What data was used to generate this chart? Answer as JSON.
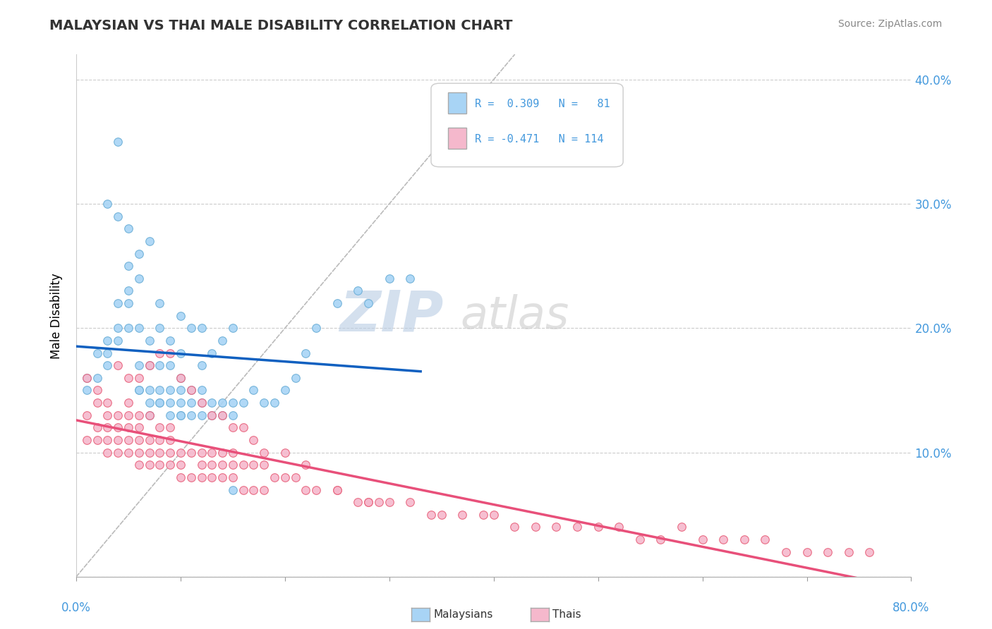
{
  "title": "MALAYSIAN VS THAI MALE DISABILITY CORRELATION CHART",
  "source": "Source: ZipAtlas.com",
  "ylabel": "Male Disability",
  "xmin": 0.0,
  "xmax": 0.8,
  "ymin": 0.0,
  "ymax": 0.42,
  "yticks": [
    0.0,
    0.1,
    0.2,
    0.3,
    0.4
  ],
  "ytick_labels": [
    "",
    "10.0%",
    "20.0%",
    "30.0%",
    "40.0%"
  ],
  "xticks": [
    0.0,
    0.1,
    0.2,
    0.3,
    0.4,
    0.5,
    0.6,
    0.7,
    0.8
  ],
  "color_malaysian_fill": "#A8D4F5",
  "color_malaysian_edge": "#6BAED6",
  "color_thai_fill": "#F5B8CC",
  "color_thai_edge": "#E8607A",
  "color_line_malaysian": "#1060C0",
  "color_line_thai": "#E8507A",
  "color_diagonal": "#BBBBBB",
  "color_grid": "#CCCCCC",
  "color_ytick": "#4499DD",
  "color_title": "#333333",
  "color_source": "#888888",
  "watermark_zip": "#CCDDEE",
  "watermark_atlas": "#CCCCCC",
  "malaysian_x": [
    0.01,
    0.01,
    0.02,
    0.02,
    0.03,
    0.03,
    0.03,
    0.04,
    0.04,
    0.04,
    0.04,
    0.05,
    0.05,
    0.05,
    0.05,
    0.06,
    0.06,
    0.06,
    0.06,
    0.06,
    0.07,
    0.07,
    0.07,
    0.07,
    0.07,
    0.08,
    0.08,
    0.08,
    0.08,
    0.08,
    0.09,
    0.09,
    0.09,
    0.09,
    0.1,
    0.1,
    0.1,
    0.1,
    0.1,
    0.1,
    0.11,
    0.11,
    0.11,
    0.11,
    0.12,
    0.12,
    0.12,
    0.12,
    0.12,
    0.13,
    0.13,
    0.13,
    0.14,
    0.14,
    0.14,
    0.15,
    0.15,
    0.15,
    0.16,
    0.17,
    0.18,
    0.19,
    0.2,
    0.21,
    0.22,
    0.23,
    0.25,
    0.27,
    0.28,
    0.3,
    0.32,
    0.03,
    0.04,
    0.05,
    0.06,
    0.07,
    0.08,
    0.09,
    0.1,
    0.15
  ],
  "malaysian_y": [
    0.15,
    0.16,
    0.16,
    0.18,
    0.17,
    0.18,
    0.19,
    0.19,
    0.2,
    0.22,
    0.29,
    0.2,
    0.22,
    0.23,
    0.25,
    0.15,
    0.17,
    0.2,
    0.24,
    0.26,
    0.14,
    0.15,
    0.17,
    0.19,
    0.27,
    0.14,
    0.15,
    0.17,
    0.2,
    0.22,
    0.14,
    0.15,
    0.17,
    0.19,
    0.13,
    0.14,
    0.15,
    0.16,
    0.18,
    0.21,
    0.13,
    0.14,
    0.15,
    0.2,
    0.13,
    0.14,
    0.15,
    0.17,
    0.2,
    0.13,
    0.14,
    0.18,
    0.13,
    0.14,
    0.19,
    0.13,
    0.14,
    0.2,
    0.14,
    0.15,
    0.14,
    0.14,
    0.15,
    0.16,
    0.18,
    0.2,
    0.22,
    0.23,
    0.22,
    0.24,
    0.24,
    0.3,
    0.35,
    0.28,
    0.15,
    0.13,
    0.14,
    0.13,
    0.13,
    0.07
  ],
  "thai_x": [
    0.01,
    0.01,
    0.02,
    0.02,
    0.02,
    0.03,
    0.03,
    0.03,
    0.03,
    0.04,
    0.04,
    0.04,
    0.04,
    0.05,
    0.05,
    0.05,
    0.05,
    0.05,
    0.06,
    0.06,
    0.06,
    0.06,
    0.06,
    0.07,
    0.07,
    0.07,
    0.07,
    0.08,
    0.08,
    0.08,
    0.08,
    0.09,
    0.09,
    0.09,
    0.09,
    0.1,
    0.1,
    0.1,
    0.11,
    0.11,
    0.12,
    0.12,
    0.12,
    0.13,
    0.13,
    0.13,
    0.14,
    0.14,
    0.14,
    0.15,
    0.15,
    0.15,
    0.16,
    0.16,
    0.17,
    0.17,
    0.18,
    0.18,
    0.19,
    0.2,
    0.21,
    0.22,
    0.23,
    0.25,
    0.27,
    0.28,
    0.29,
    0.3,
    0.32,
    0.34,
    0.35,
    0.37,
    0.39,
    0.4,
    0.42,
    0.44,
    0.46,
    0.48,
    0.5,
    0.52,
    0.54,
    0.56,
    0.58,
    0.6,
    0.62,
    0.64,
    0.66,
    0.68,
    0.7,
    0.72,
    0.74,
    0.76,
    0.01,
    0.02,
    0.03,
    0.04,
    0.05,
    0.06,
    0.07,
    0.08,
    0.09,
    0.1,
    0.11,
    0.12,
    0.13,
    0.14,
    0.15,
    0.16,
    0.17,
    0.18,
    0.2,
    0.22,
    0.25,
    0.28
  ],
  "thai_y": [
    0.11,
    0.13,
    0.11,
    0.12,
    0.14,
    0.1,
    0.11,
    0.12,
    0.13,
    0.1,
    0.11,
    0.12,
    0.13,
    0.1,
    0.11,
    0.12,
    0.13,
    0.14,
    0.09,
    0.1,
    0.11,
    0.12,
    0.13,
    0.09,
    0.1,
    0.11,
    0.13,
    0.09,
    0.1,
    0.11,
    0.12,
    0.09,
    0.1,
    0.11,
    0.12,
    0.08,
    0.09,
    0.1,
    0.08,
    0.1,
    0.08,
    0.09,
    0.1,
    0.08,
    0.09,
    0.1,
    0.08,
    0.09,
    0.1,
    0.08,
    0.09,
    0.1,
    0.07,
    0.09,
    0.07,
    0.09,
    0.07,
    0.09,
    0.08,
    0.08,
    0.08,
    0.07,
    0.07,
    0.07,
    0.06,
    0.06,
    0.06,
    0.06,
    0.06,
    0.05,
    0.05,
    0.05,
    0.05,
    0.05,
    0.04,
    0.04,
    0.04,
    0.04,
    0.04,
    0.04,
    0.03,
    0.03,
    0.04,
    0.03,
    0.03,
    0.03,
    0.03,
    0.02,
    0.02,
    0.02,
    0.02,
    0.02,
    0.16,
    0.15,
    0.14,
    0.17,
    0.16,
    0.16,
    0.17,
    0.18,
    0.18,
    0.16,
    0.15,
    0.14,
    0.13,
    0.13,
    0.12,
    0.12,
    0.11,
    0.1,
    0.1,
    0.09,
    0.07,
    0.06
  ]
}
